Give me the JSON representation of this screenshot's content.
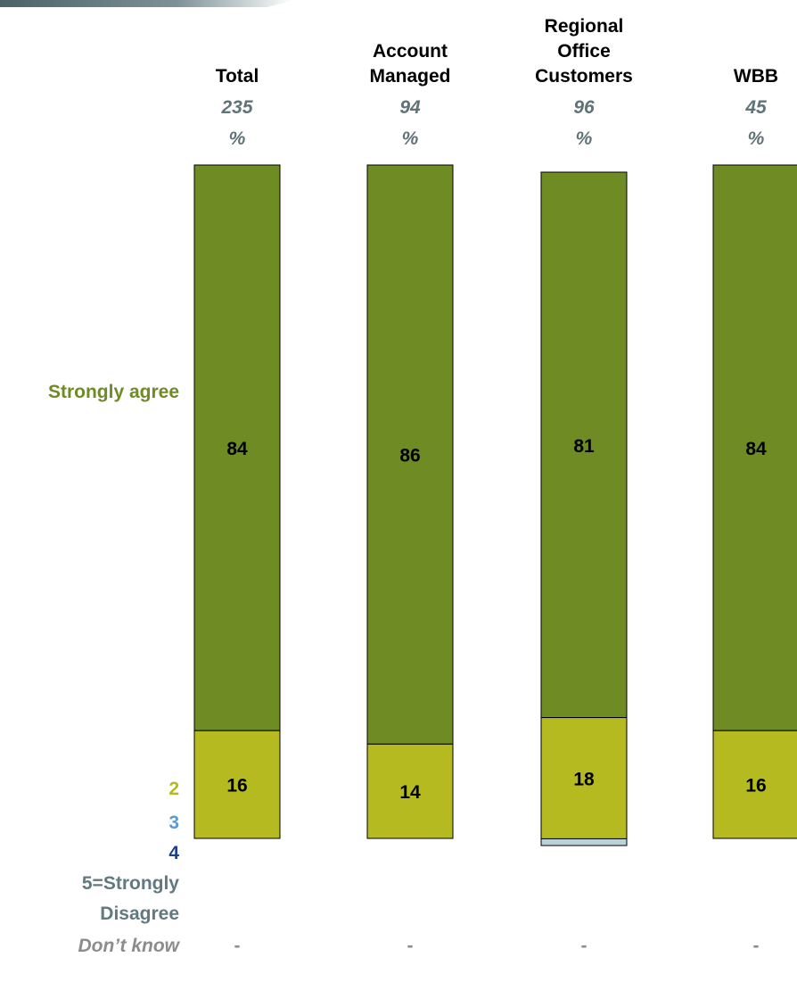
{
  "chart_data": {
    "type": "bar",
    "stacked": true,
    "percent": true,
    "categories": [
      "Total",
      "Account Managed",
      "Regional Office Customers",
      "WBB"
    ],
    "category_header_lines": [
      [
        "Total"
      ],
      [
        "Account",
        "Managed"
      ],
      [
        "Regional",
        "Office",
        "Customers"
      ],
      [
        "WBB"
      ]
    ],
    "bases": [
      "235",
      "94",
      "96",
      "45"
    ],
    "unit_label": "%",
    "series": [
      {
        "name": "Strongly agree",
        "label_lines": [
          "Strongly agree"
        ],
        "color": "#6e8b24",
        "values": [
          84,
          86,
          81,
          84
        ],
        "value_labels": [
          "84",
          "86",
          "81",
          "84"
        ]
      },
      {
        "name": "2",
        "label_lines": [
          "2"
        ],
        "color": "#b4ba1f",
        "values": [
          16,
          14,
          18,
          16
        ],
        "value_labels": [
          "16",
          "14",
          "18",
          "16"
        ]
      },
      {
        "name": "3",
        "label_lines": [
          "3"
        ],
        "color": "#b8d3da",
        "values": [
          0,
          0,
          1,
          0
        ],
        "value_labels": [
          "",
          "",
          "",
          ""
        ]
      },
      {
        "name": "4",
        "label_lines": [
          "4"
        ],
        "color": "#1f3f8f",
        "values": [
          0,
          0,
          0,
          0
        ],
        "value_labels": [
          "",
          "",
          "",
          ""
        ]
      },
      {
        "name": "5=Strongly Disagree",
        "label_lines": [
          "5=Strongly",
          "Disagree"
        ],
        "color": "#607a80",
        "values": [
          0,
          0,
          0,
          0
        ],
        "value_labels": [
          "",
          "",
          "",
          ""
        ]
      }
    ],
    "row_label_colors": [
      "#6e8b24",
      "#b4ba1f",
      "#5b9bd5",
      "#1f3f8f",
      "#607a80"
    ],
    "dont_know": {
      "label": "Don’t know",
      "values": [
        "-",
        "-",
        "-",
        "-"
      ]
    },
    "ylim": [
      0,
      100
    ],
    "grid": false,
    "legend": "none",
    "xlabel": "",
    "ylabel": "",
    "title": ""
  }
}
